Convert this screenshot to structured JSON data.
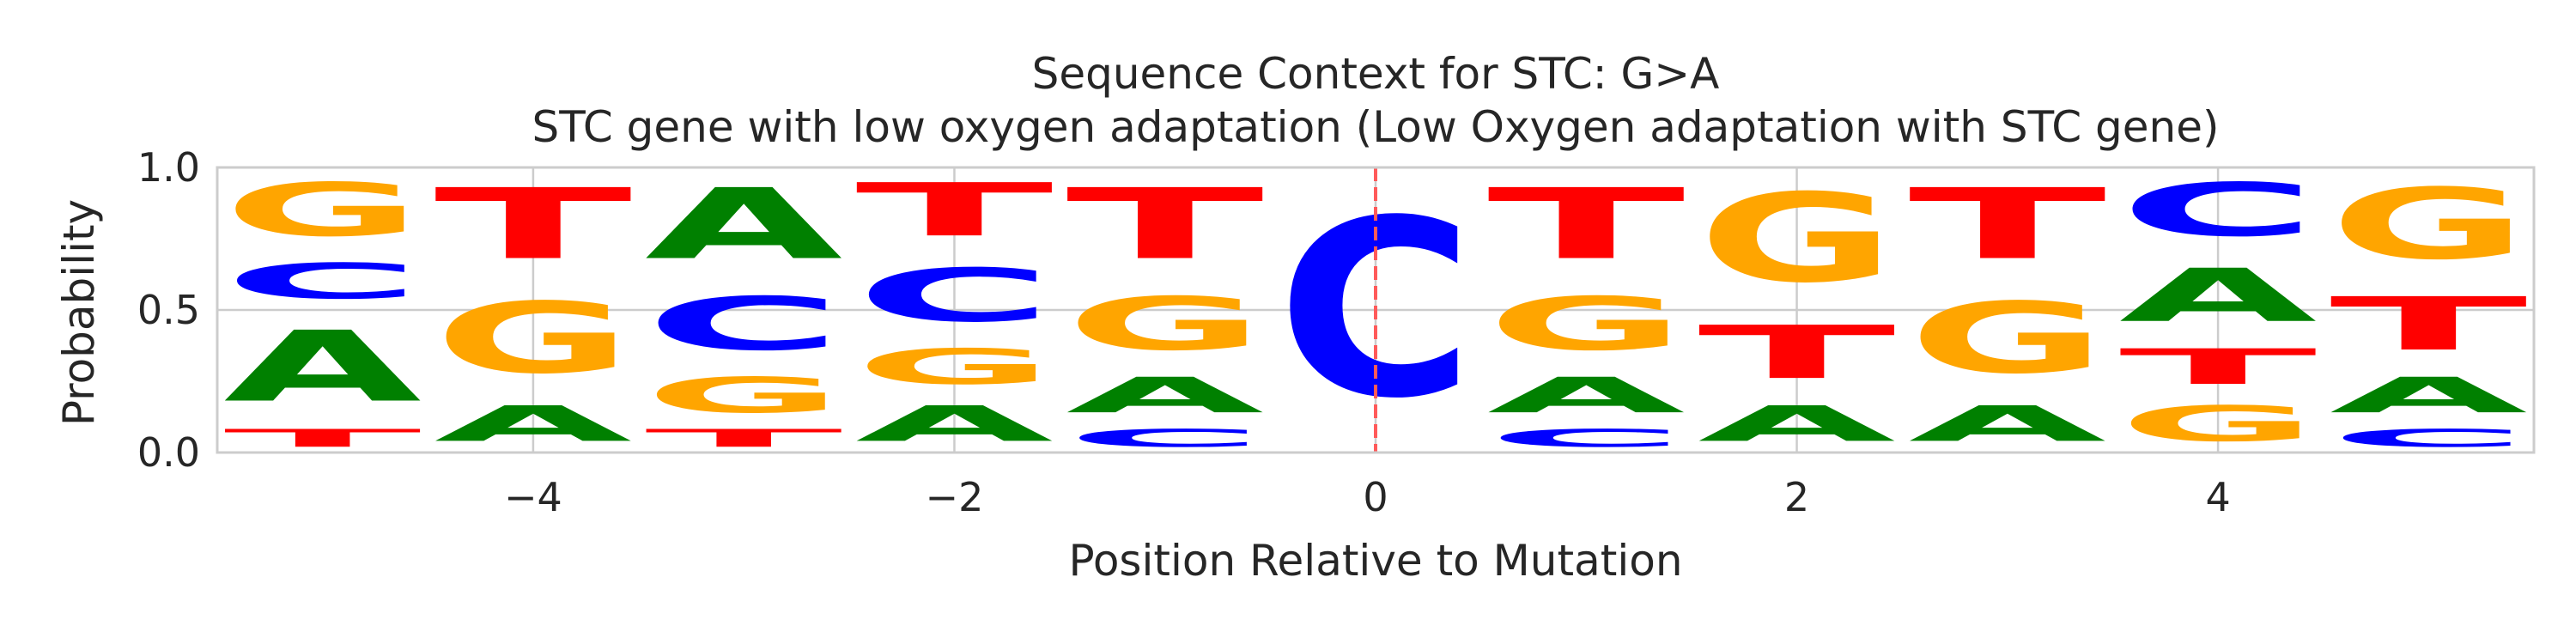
{
  "chart_data": {
    "type": "sequence-logo",
    "title": "Sequence Context for STC: G>A",
    "subtitle": "STC gene with low oxygen adaptation (Low Oxygen adaptation with STC gene)",
    "xlabel": "Position Relative to Mutation",
    "ylabel": "Probability",
    "xlim": [
      -5.5,
      5.5
    ],
    "ylim": [
      0,
      1.0
    ],
    "xticks": [
      -4,
      -2,
      0,
      2,
      4
    ],
    "xtick_labels": [
      "−4",
      "−2",
      "0",
      "2",
      "4"
    ],
    "yticks": [
      0.0,
      0.5,
      1.0
    ],
    "ytick_labels": [
      "0.0",
      "0.5",
      "1.0"
    ],
    "grid": true,
    "mutation_marker": {
      "position": 0,
      "color": "#ff5a5a",
      "style": "dashed"
    },
    "base_colors": {
      "A": "#008000",
      "C": "#0000ff",
      "G": "#ffa500",
      "T": "#ff0000"
    },
    "positions": [
      {
        "pos": -5,
        "stack": [
          {
            "base": "T",
            "p": 0.1
          },
          {
            "base": "A",
            "p": 0.4
          },
          {
            "base": "C",
            "p": 0.2
          },
          {
            "base": "G",
            "p": 0.3
          }
        ]
      },
      {
        "pos": -4,
        "stack": [
          {
            "base": "A",
            "p": 0.2
          },
          {
            "base": "G",
            "p": 0.4
          },
          {
            "base": "T",
            "p": 0.4
          }
        ]
      },
      {
        "pos": -3,
        "stack": [
          {
            "base": "T",
            "p": 0.1
          },
          {
            "base": "G",
            "p": 0.2
          },
          {
            "base": "C",
            "p": 0.3
          },
          {
            "base": "A",
            "p": 0.4
          }
        ]
      },
      {
        "pos": -2,
        "stack": [
          {
            "base": "A",
            "p": 0.2
          },
          {
            "base": "G",
            "p": 0.2
          },
          {
            "base": "C",
            "p": 0.3
          },
          {
            "base": "T",
            "p": 0.3
          }
        ]
      },
      {
        "pos": -1,
        "stack": [
          {
            "base": "C",
            "p": 0.1
          },
          {
            "base": "A",
            "p": 0.2
          },
          {
            "base": "G",
            "p": 0.3
          },
          {
            "base": "T",
            "p": 0.4
          }
        ]
      },
      {
        "pos": 0,
        "stack": [
          {
            "base": "C",
            "p": 1.0
          }
        ]
      },
      {
        "pos": 1,
        "stack": [
          {
            "base": "C",
            "p": 0.1
          },
          {
            "base": "A",
            "p": 0.2
          },
          {
            "base": "G",
            "p": 0.3
          },
          {
            "base": "T",
            "p": 0.4
          }
        ]
      },
      {
        "pos": 2,
        "stack": [
          {
            "base": "A",
            "p": 0.2
          },
          {
            "base": "T",
            "p": 0.3
          },
          {
            "base": "G",
            "p": 0.5
          }
        ]
      },
      {
        "pos": 3,
        "stack": [
          {
            "base": "A",
            "p": 0.2
          },
          {
            "base": "G",
            "p": 0.4
          },
          {
            "base": "T",
            "p": 0.4
          }
        ]
      },
      {
        "pos": 4,
        "stack": [
          {
            "base": "G",
            "p": 0.2
          },
          {
            "base": "T",
            "p": 0.2
          },
          {
            "base": "A",
            "p": 0.3
          },
          {
            "base": "C",
            "p": 0.3
          }
        ]
      },
      {
        "pos": 5,
        "stack": [
          {
            "base": "C",
            "p": 0.1
          },
          {
            "base": "A",
            "p": 0.2
          },
          {
            "base": "T",
            "p": 0.3
          },
          {
            "base": "G",
            "p": 0.4
          }
        ]
      }
    ]
  }
}
